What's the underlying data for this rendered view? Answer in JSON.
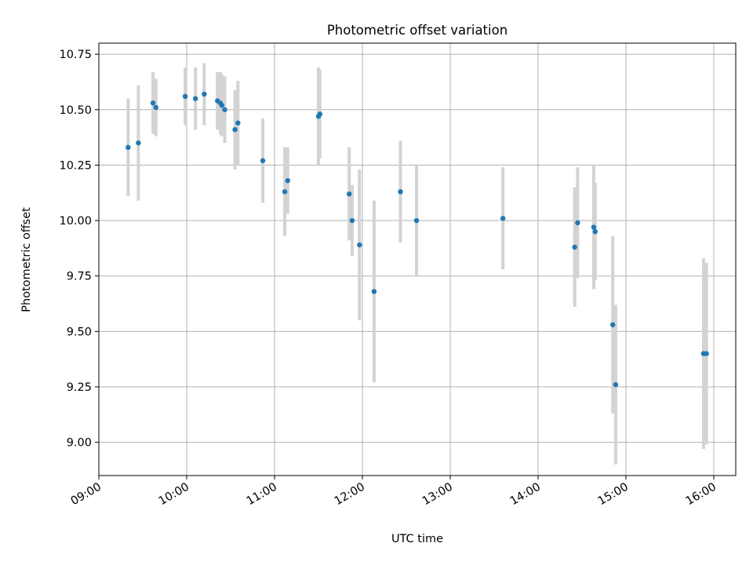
{
  "chart_data": {
    "type": "scatter",
    "title": "Photometric offset variation",
    "xlabel": "UTC time",
    "ylabel": "Photometric offset",
    "xlim": [
      "09:00",
      "16:15"
    ],
    "ylim": [
      8.85,
      10.8
    ],
    "x_ticks": [
      "09:00",
      "10:00",
      "11:00",
      "12:00",
      "13:00",
      "14:00",
      "15:00",
      "16:00"
    ],
    "y_ticks": [
      "9.00",
      "9.25",
      "9.50",
      "9.75",
      "10.00",
      "10.25",
      "10.50",
      "10.75"
    ],
    "grid": true,
    "series": [
      {
        "marker_color": "#1f77b4",
        "errorbar_color": "#d3d3d3",
        "points": [
          {
            "x": "09:20",
            "y": 10.33,
            "yerr": 0.22
          },
          {
            "x": "09:27",
            "y": 10.35,
            "yerr": 0.26
          },
          {
            "x": "09:37",
            "y": 10.53,
            "yerr": 0.14
          },
          {
            "x": "09:39",
            "y": 10.51,
            "yerr": 0.13
          },
          {
            "x": "09:59",
            "y": 10.56,
            "yerr": 0.13
          },
          {
            "x": "10:06",
            "y": 10.55,
            "yerr": 0.14
          },
          {
            "x": "10:12",
            "y": 10.57,
            "yerr": 0.14
          },
          {
            "x": "10:21",
            "y": 10.54,
            "yerr": 0.13
          },
          {
            "x": "10:23",
            "y": 10.53,
            "yerr": 0.14
          },
          {
            "x": "10:24",
            "y": 10.52,
            "yerr": 0.14
          },
          {
            "x": "10:26",
            "y": 10.5,
            "yerr": 0.15
          },
          {
            "x": "10:33",
            "y": 10.41,
            "yerr": 0.18
          },
          {
            "x": "10:35",
            "y": 10.44,
            "yerr": 0.19
          },
          {
            "x": "10:52",
            "y": 10.27,
            "yerr": 0.19
          },
          {
            "x": "11:07",
            "y": 10.13,
            "yerr": 0.2
          },
          {
            "x": "11:09",
            "y": 10.18,
            "yerr": 0.15
          },
          {
            "x": "11:30",
            "y": 10.47,
            "yerr": 0.22
          },
          {
            "x": "11:31",
            "y": 10.48,
            "yerr": 0.2
          },
          {
            "x": "11:51",
            "y": 10.12,
            "yerr": 0.21
          },
          {
            "x": "11:53",
            "y": 10.0,
            "yerr": 0.16
          },
          {
            "x": "11:58",
            "y": 9.89,
            "yerr": 0.34
          },
          {
            "x": "12:08",
            "y": 9.68,
            "yerr": 0.41
          },
          {
            "x": "12:26",
            "y": 10.13,
            "yerr": 0.23
          },
          {
            "x": "12:37",
            "y": 10.0,
            "yerr": 0.25
          },
          {
            "x": "13:36",
            "y": 10.01,
            "yerr": 0.23
          },
          {
            "x": "14:25",
            "y": 9.88,
            "yerr": 0.27
          },
          {
            "x": "14:27",
            "y": 9.99,
            "yerr": 0.25
          },
          {
            "x": "14:38",
            "y": 9.97,
            "yerr": 0.28
          },
          {
            "x": "14:39",
            "y": 9.95,
            "yerr": 0.22
          },
          {
            "x": "14:51",
            "y": 9.53,
            "yerr": 0.4
          },
          {
            "x": "14:53",
            "y": 9.26,
            "yerr": 0.36
          },
          {
            "x": "15:53",
            "y": 9.4,
            "yerr": 0.43
          },
          {
            "x": "15:55",
            "y": 9.4,
            "yerr": 0.41
          }
        ]
      }
    ]
  }
}
